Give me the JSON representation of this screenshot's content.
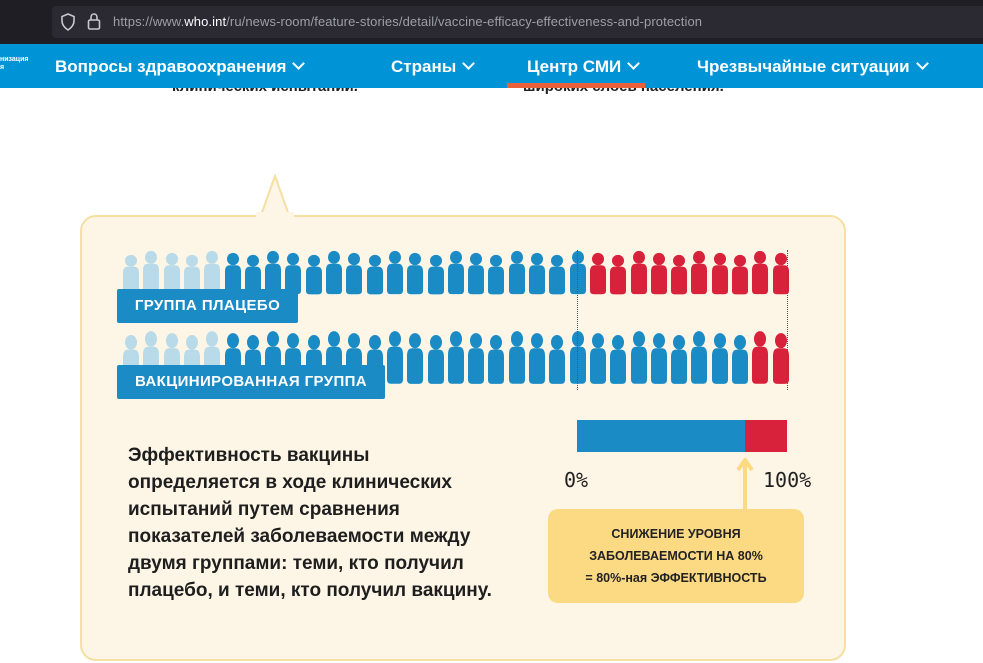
{
  "browser": {
    "url_prefix": "https://www.",
    "url_domain": "who.int",
    "url_path": "/ru/news-room/feature-stories/detail/vaccine-efficacy-effectiveness-and-protection"
  },
  "nav": {
    "logo_line1": "низация",
    "logo_line2": "я",
    "items": [
      {
        "label": "Вопросы здравоохранения"
      },
      {
        "label": "Страны"
      },
      {
        "label": "Центр СМИ"
      },
      {
        "label": "Чрезвычайные ситуации"
      }
    ],
    "active_index": 2
  },
  "hidden_text": {
    "left": "клинических испытаний.",
    "right": "широких слоев населения."
  },
  "infographic": {
    "placebo": {
      "label": "ГРУППА ПЛАЦЕБО",
      "faded_count": 5,
      "blue_count": 18,
      "red_count": 10
    },
    "vaccinated": {
      "label": "ВАКЦИНИРОВАННАЯ ГРУППА",
      "faded_count": 5,
      "blue_count": 26,
      "red_count": 2
    },
    "bar": {
      "blue_fraction": 0.8,
      "red_fraction": 0.2,
      "label_start": "0%",
      "label_end": "100%"
    },
    "result": {
      "line1": "СНИЖЕНИЕ УРОВНЯ",
      "line2": "ЗАБОЛЕВАЕМОСТИ НА 80%",
      "line3": "= 80%-ная ЭФФЕКТИВНОСТЬ"
    },
    "description": [
      "Эффективность вакцины",
      "определяется в ходе клинических",
      "испытаний путем сравнения",
      "показателей заболеваемости между",
      "двумя группами: теми, кто получил",
      "плацебо, и теми, кто получил вакцину."
    ],
    "colors": {
      "blue": "#1a8bc5",
      "red": "#d8213a",
      "faded": "#b9dbe9"
    }
  }
}
